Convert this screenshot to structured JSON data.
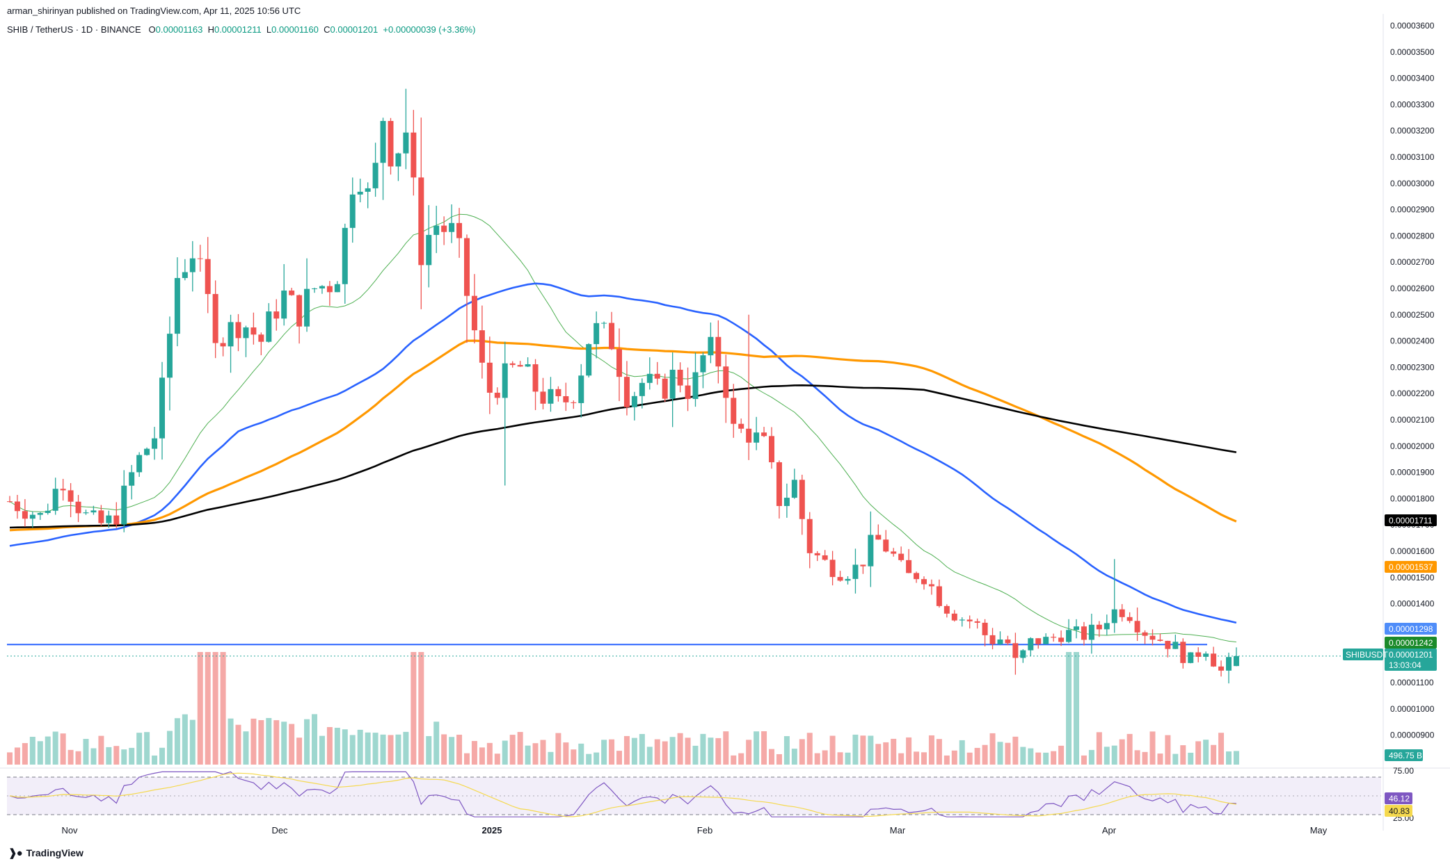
{
  "header": {
    "published": "arman_shirinyan published on TradingView.com, Apr 11, 2025 10:56 UTC",
    "symbol": "SHIB / TetherUS · 1D · BINANCE",
    "open_label": "O",
    "open": "0.00001163",
    "high_label": "H",
    "high": "0.00001211",
    "low_label": "L",
    "low": "0.00001160",
    "close_label": "C",
    "close": "0.00001201",
    "change": "+0.00000039 (+3.36%)"
  },
  "footer": {
    "brand": "TradingView"
  },
  "colors": {
    "up": "#26a69a",
    "down": "#ef5350",
    "up_vol": "#9ed7cf",
    "down_vol": "#f5a9a7",
    "ma20": "#4caf50",
    "ma50": "#2962ff",
    "ma100": "#ff9800",
    "ma200": "#000000",
    "rsi": "#7e57c2",
    "rsi_ma": "#f5d94e",
    "hline": "#2962ff"
  },
  "chart_data": {
    "type": "candlestick",
    "price_axis_ticks": [
      "0.00003600",
      "0.00003500",
      "0.00003400",
      "0.00003300",
      "0.00003200",
      "0.00003100",
      "0.00003000",
      "0.00002900",
      "0.00002800",
      "0.00002700",
      "0.00002600",
      "0.00002500",
      "0.00002400",
      "0.00002300",
      "0.00002200",
      "0.00002100",
      "0.00002000",
      "0.00001900",
      "0.00001800",
      "0.00001700",
      "0.00001600",
      "0.00001500",
      "0.00001400",
      "0.00001300",
      "0.00001200",
      "0.00001100",
      "0.00001000",
      "0.00000900"
    ],
    "time_axis_labels": [
      "Nov",
      "Dec",
      "2025",
      "Feb",
      "Mar",
      "Apr",
      "May"
    ],
    "price_scale_labels": {
      "ma200": "0.00001711",
      "ma100": "0.00001537",
      "ma50": "0.00001298",
      "ma20": "0.00001242",
      "ticker": "SHIBUSDT",
      "last": "0.00001201",
      "countdown": "13:03:04",
      "volume": "496.75 B"
    },
    "horizontal_line": 1.245e-05,
    "rsi": {
      "upper": "75.00",
      "lower": "25.00",
      "value": "46.12",
      "ma_value": "40.83"
    },
    "ohlc_days_approx": 162,
    "anchors": {
      "start": "Oct 25 2024",
      "start_price": 1.79e-05,
      "peak": "Dec 08 2024",
      "peak_price": 3.33e-05,
      "end": "Apr 11 2025",
      "end_price": 1.201e-05
    }
  }
}
